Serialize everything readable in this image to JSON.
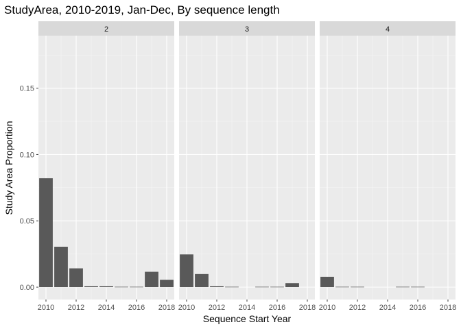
{
  "chart_data": {
    "type": "bar",
    "title": "StudyArea, 2010-2019, Jan-Dec, By sequence length",
    "xlabel": "Sequence Start Year",
    "ylabel": "Study Area Proportion",
    "xlim": [
      2009.5,
      2018.5
    ],
    "ylim": [
      -0.0093,
      0.1896
    ],
    "x_ticks": [
      2010,
      2012,
      2014,
      2016,
      2018
    ],
    "x_tick_labels": [
      "2010",
      "2012",
      "2014",
      "2016",
      "2018"
    ],
    "y_ticks": [
      0,
      0.05,
      0.1,
      0.15
    ],
    "y_tick_labels": [
      "0.00",
      "0.05",
      "0.10",
      "0.15"
    ],
    "grid": true,
    "facets": [
      {
        "label": "2",
        "x": [
          2010,
          2011,
          2012,
          2013,
          2014,
          2015,
          2016,
          2017,
          2018
        ],
        "values": [
          0.0821,
          0.0305,
          0.0142,
          0.0008,
          0.0008,
          0.0003,
          0.0003,
          0.0116,
          0.0056
        ]
      },
      {
        "label": "3",
        "x": [
          2010,
          2011,
          2012,
          2013,
          2015,
          2016,
          2017
        ],
        "values": [
          0.0247,
          0.0099,
          0.0008,
          0.0003,
          0.0003,
          0.0003,
          0.003
        ]
      },
      {
        "label": "4",
        "x": [
          2010,
          2011,
          2012,
          2015,
          2016
        ],
        "values": [
          0.0078,
          0.0003,
          0.0003,
          0.0003,
          0.0003
        ]
      }
    ]
  },
  "colors": {
    "bar": "#595959",
    "panel_background": "#ebebeb",
    "strip_background": "#d9d9d9",
    "major_grid": "#ffffff",
    "minor_grid": "#f5f5f5",
    "text": "#000000",
    "tick_text": "#4d4d4d"
  }
}
